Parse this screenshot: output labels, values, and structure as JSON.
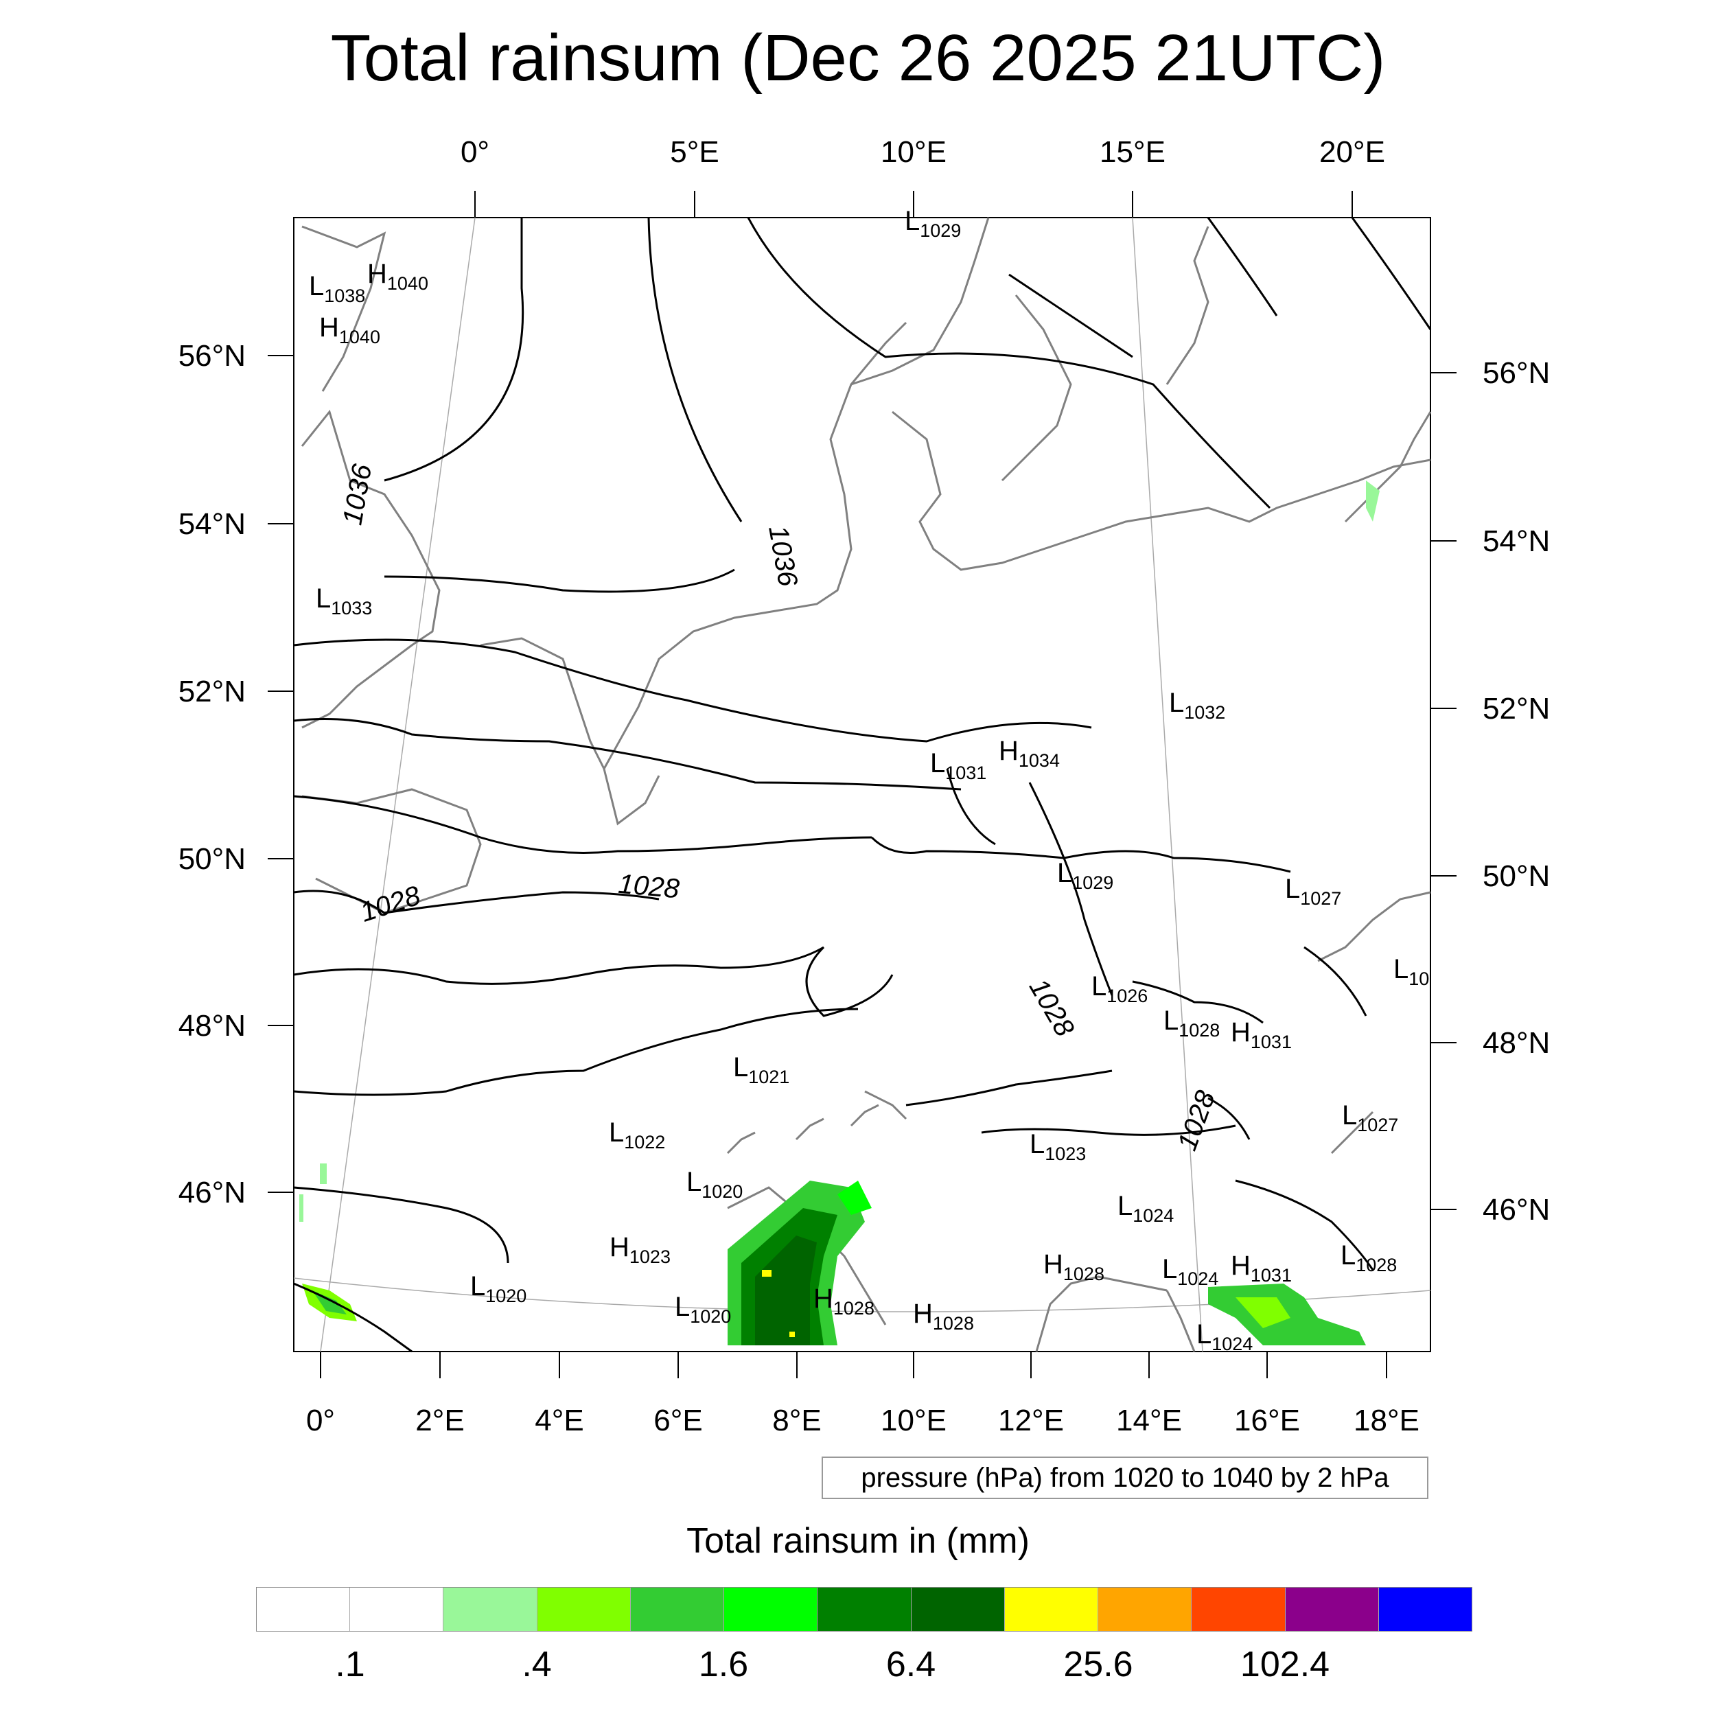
{
  "title": "Total rainsum (Dec 26 2025 21UTC)",
  "map": {
    "top_lon_labels": [
      "0°",
      "5°E",
      "10°E",
      "15°E",
      "20°E"
    ],
    "bottom_lon_labels": [
      "0°",
      "2°E",
      "4°E",
      "6°E",
      "8°E",
      "10°E",
      "12°E",
      "14°E",
      "16°E",
      "18°E"
    ],
    "left_lat_labels": [
      "56°N",
      "54°N",
      "52°N",
      "50°N",
      "48°N",
      "46°N"
    ],
    "right_lat_labels": [
      "56°N",
      "54°N",
      "52°N",
      "50°N",
      "48°N",
      "46°N"
    ],
    "isobar_labels": [
      "1036",
      "1036",
      "1028",
      "1028",
      "1028",
      "1028"
    ],
    "pressure_centers": [
      {
        "type": "L",
        "value": "1029"
      },
      {
        "type": "L",
        "value": "1038"
      },
      {
        "type": "H",
        "value": "1040"
      },
      {
        "type": "H",
        "value": "1040"
      },
      {
        "type": "L",
        "value": "1033"
      },
      {
        "type": "L",
        "value": "1032"
      },
      {
        "type": "L",
        "value": "1031"
      },
      {
        "type": "H",
        "value": "1034"
      },
      {
        "type": "L",
        "value": "1029"
      },
      {
        "type": "L",
        "value": "1027"
      },
      {
        "type": "L",
        "value": "10"
      },
      {
        "type": "L",
        "value": "1026"
      },
      {
        "type": "L",
        "value": "1028"
      },
      {
        "type": "H",
        "value": "1031"
      },
      {
        "type": "L",
        "value": "1021"
      },
      {
        "type": "L",
        "value": "1022"
      },
      {
        "type": "L",
        "value": "1027"
      },
      {
        "type": "L",
        "value": "1023"
      },
      {
        "type": "L",
        "value": "1020"
      },
      {
        "type": "L",
        "value": "1024"
      },
      {
        "type": "H",
        "value": "1023"
      },
      {
        "type": "L",
        "value": "1020"
      },
      {
        "type": "L",
        "value": "1020"
      },
      {
        "type": "H",
        "value": "1028"
      },
      {
        "type": "H",
        "value": "1028"
      },
      {
        "type": "H",
        "value": "1028"
      },
      {
        "type": "L",
        "value": "1024"
      },
      {
        "type": "H",
        "value": "1031"
      },
      {
        "type": "L",
        "value": "1028"
      },
      {
        "type": "L",
        "value": "1024"
      }
    ],
    "colors": {
      "isobar": "#000000",
      "coastline": "#808080",
      "graticule": "#aaaaaa"
    }
  },
  "info_box": "pressure (hPa) from 1020 to 1040 by 2 hPa",
  "legend": {
    "title": "Total rainsum in (mm)",
    "colors": [
      "#ffffff",
      "#ffffff",
      "#99f799",
      "#80ff00",
      "#33cc33",
      "#00ff00",
      "#008000",
      "#006400",
      "#ffff00",
      "#ffa500",
      "#ff4500",
      "#8b008b",
      "#0000ff"
    ],
    "labels": [
      ".1",
      ".4",
      "1.6",
      "6.4",
      "25.6",
      "102.4"
    ]
  }
}
